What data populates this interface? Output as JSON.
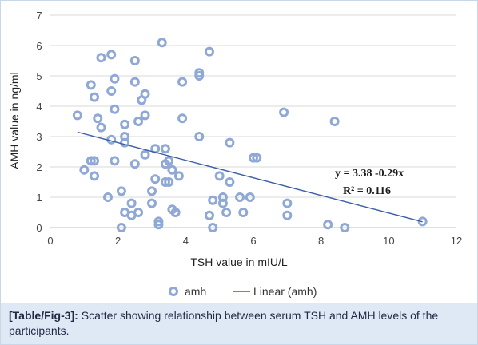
{
  "chart_data": {
    "type": "scatter",
    "title": "",
    "xlabel": "TSH value in mIU/L",
    "ylabel": "AMH value in ng/ml",
    "xlim": [
      0,
      12
    ],
    "ylim": [
      0,
      7
    ],
    "xticks": [
      "0",
      "2",
      "4",
      "6",
      "8",
      "10",
      "12"
    ],
    "yticks": [
      "0",
      "1",
      "2",
      "3",
      "4",
      "5",
      "6",
      "7"
    ],
    "grid": "horizontal",
    "legend_position": "bottom",
    "series": [
      {
        "name": "amh",
        "marker_color": "#8fa8d6",
        "points": [
          [
            0.8,
            3.7
          ],
          [
            1.0,
            1.9
          ],
          [
            1.2,
            4.7
          ],
          [
            1.3,
            4.3
          ],
          [
            1.2,
            2.2
          ],
          [
            1.3,
            2.2
          ],
          [
            1.3,
            1.7
          ],
          [
            1.4,
            3.6
          ],
          [
            1.5,
            3.3
          ],
          [
            1.5,
            5.6
          ],
          [
            1.7,
            1.0
          ],
          [
            1.8,
            5.7
          ],
          [
            1.8,
            4.5
          ],
          [
            1.8,
            2.9
          ],
          [
            1.9,
            4.9
          ],
          [
            1.9,
            3.9
          ],
          [
            1.9,
            2.2
          ],
          [
            2.1,
            1.2
          ],
          [
            2.1,
            0.0
          ],
          [
            2.2,
            3.4
          ],
          [
            2.2,
            3.0
          ],
          [
            2.2,
            2.8
          ],
          [
            2.2,
            0.5
          ],
          [
            2.4,
            0.8
          ],
          [
            2.4,
            0.4
          ],
          [
            2.5,
            5.5
          ],
          [
            2.5,
            4.8
          ],
          [
            2.5,
            2.1
          ],
          [
            2.6,
            3.5
          ],
          [
            2.6,
            0.5
          ],
          [
            2.7,
            4.2
          ],
          [
            2.8,
            4.4
          ],
          [
            2.8,
            3.7
          ],
          [
            2.8,
            2.4
          ],
          [
            3.0,
            1.2
          ],
          [
            3.0,
            0.8
          ],
          [
            3.1,
            2.6
          ],
          [
            3.1,
            1.6
          ],
          [
            3.2,
            0.2
          ],
          [
            3.2,
            0.1
          ],
          [
            3.3,
            6.1
          ],
          [
            3.4,
            2.6
          ],
          [
            3.4,
            1.5
          ],
          [
            3.4,
            2.1
          ],
          [
            3.5,
            1.5
          ],
          [
            3.5,
            2.2
          ],
          [
            3.6,
            0.6
          ],
          [
            3.6,
            1.9
          ],
          [
            3.7,
            0.5
          ],
          [
            3.8,
            1.7
          ],
          [
            3.9,
            4.8
          ],
          [
            3.9,
            3.6
          ],
          [
            4.4,
            5.1
          ],
          [
            4.4,
            5.0
          ],
          [
            4.4,
            3.0
          ],
          [
            4.7,
            5.8
          ],
          [
            4.7,
            0.4
          ],
          [
            4.8,
            0.9
          ],
          [
            4.8,
            0.0
          ],
          [
            5.0,
            1.7
          ],
          [
            5.1,
            1.0
          ],
          [
            5.1,
            0.8
          ],
          [
            5.2,
            0.5
          ],
          [
            5.3,
            1.5
          ],
          [
            5.3,
            2.8
          ],
          [
            5.6,
            1.0
          ],
          [
            5.7,
            0.5
          ],
          [
            5.9,
            1.0
          ],
          [
            6.0,
            2.3
          ],
          [
            6.1,
            2.3
          ],
          [
            6.9,
            3.8
          ],
          [
            7.0,
            0.8
          ],
          [
            7.0,
            0.4
          ],
          [
            8.2,
            0.1
          ],
          [
            8.4,
            3.5
          ],
          [
            8.7,
            0.0
          ],
          [
            11.0,
            0.2
          ]
        ]
      },
      {
        "name": "Linear (amh)",
        "type": "line",
        "line_color": "#3b5ea6",
        "intercept": 3.38,
        "slope": -0.29,
        "x_range": [
          0.8,
          11.0
        ]
      }
    ],
    "annotations": [
      "y = 3.38 -0.29x",
      "R² = 0.116"
    ]
  },
  "caption": {
    "ref": "[Table/Fig-3]:",
    "text": " Scatter showing relationship between serum TSH and AMH levels of the participants."
  }
}
